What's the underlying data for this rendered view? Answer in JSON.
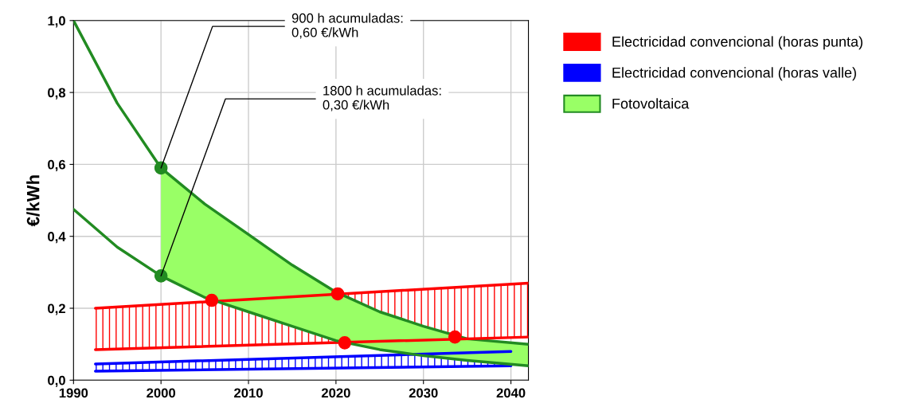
{
  "chart_data": {
    "type": "line",
    "ylabel": "€/kWh",
    "xlim": [
      1990,
      2042
    ],
    "xticks": [
      1990,
      2000,
      2010,
      2020,
      2030,
      2040
    ],
    "ylim": [
      0,
      1
    ],
    "yticks": [
      {
        "value": 0,
        "label": "0,0"
      },
      {
        "value": 0.2,
        "label": "0,2"
      },
      {
        "value": 0.4,
        "label": "0,4"
      },
      {
        "value": 0.6,
        "label": "0,6"
      },
      {
        "value": 0.8,
        "label": "0,8"
      },
      {
        "value": 1.0,
        "label": "1,0"
      }
    ],
    "grid": true,
    "legend": "right",
    "series": [
      {
        "name": "Electricidad convencional (horas punta)",
        "color": "#ff0000",
        "x": [
          1992.5,
          2042
        ],
        "values": [
          0.2,
          0.27
        ],
        "upper": [
          0.2,
          0.27
        ],
        "lower": [
          0.085,
          0.12
        ]
      },
      {
        "name": "Electricidad convencional (horas valle)",
        "color": "#0000ff",
        "x": [
          1992.5,
          2040
        ],
        "values": [
          0.045,
          0.08
        ],
        "upper": [
          0.045,
          0.08
        ],
        "lower": [
          0.025,
          0.04
        ]
      },
      {
        "name": "Fotovoltaica",
        "color": "#228b22",
        "x": [
          1990,
          1995,
          2000,
          2005,
          2010,
          2015,
          2020,
          2025,
          2030,
          2035,
          2042
        ],
        "values": [
          1.0,
          0.77,
          0.59,
          0.49,
          0.405,
          0.32,
          0.245,
          0.19,
          0.15,
          0.115,
          0.1
        ],
        "upper": [
          null,
          null,
          0.59,
          0.49,
          0.405,
          0.32,
          0.245,
          0.19,
          0.15,
          0.115,
          0.1
        ],
        "lower": [
          null,
          null,
          0.29,
          0.23,
          0.19,
          0.15,
          0.11,
          0.085,
          0.068,
          0.055,
          0.04
        ]
      },
      {
        "color": "#ff0000",
        "x": [
          1992.5,
          2042
        ],
        "values": [
          0.085,
          0.12
        ]
      },
      {
        "color": "#0000ff",
        "x": [
          1992.5,
          2040
        ],
        "values": [
          0.025,
          0.04
        ]
      },
      {
        "color": "#228b22",
        "x": [
          1990,
          1995,
          2000,
          2005,
          2010,
          2015,
          2020,
          2025,
          2030,
          2035,
          2042
        ],
        "values": [
          0.475,
          0.37,
          0.29,
          0.23,
          0.19,
          0.15,
          0.11,
          0.085,
          0.068,
          0.055,
          0.04
        ]
      },
      {
        "type": "scatter",
        "color": "#228b22",
        "x": [
          2000,
          2000
        ],
        "values": [
          0.59,
          0.29
        ]
      },
      {
        "type": "scatter",
        "color": "#ff0000",
        "x": [
          2005.8,
          2020.2,
          2021,
          2033.6
        ],
        "values": [
          0.222,
          0.24,
          0.104,
          0.12
        ]
      }
    ],
    "annotations": [
      {
        "text": "900 h acumuladas:\n0,60 €/kWh",
        "x": 2000,
        "y": 0.59
      },
      {
        "text": "1800 h acumuladas:\n0,30 €/kWh",
        "x": 2000,
        "y": 0.29
      }
    ]
  }
}
